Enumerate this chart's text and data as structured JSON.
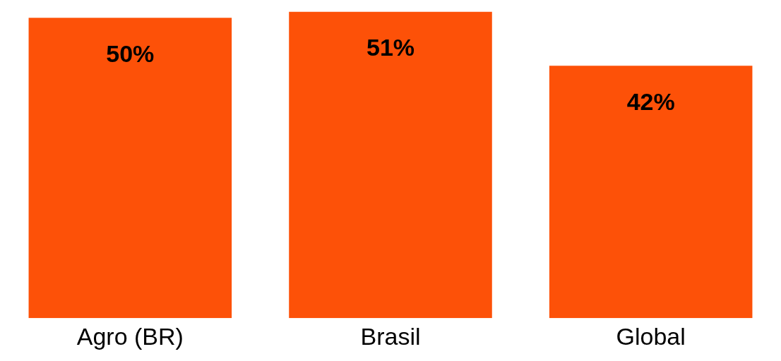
{
  "chart_data": {
    "type": "bar",
    "categories": [
      "Agro (BR)",
      "Brasil",
      "Global"
    ],
    "values": [
      50,
      51,
      42
    ],
    "color": "#fd5108",
    "value_labels": [
      "50%",
      "51%",
      "42%"
    ],
    "grid": false,
    "legend": false
  }
}
